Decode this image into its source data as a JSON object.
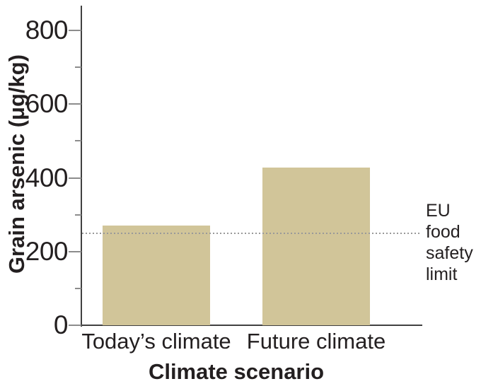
{
  "chart_data": {
    "type": "bar",
    "title": "",
    "xlabel": "Climate scenario",
    "ylabel": "Grain arsenic (μg/kg)",
    "categories": [
      "Today’s climate",
      "Future climate"
    ],
    "values": [
      270,
      428
    ],
    "ylim": [
      0,
      870
    ],
    "yticks_major": [
      0,
      200,
      400,
      600,
      800
    ],
    "yticks_minor": [
      100,
      300,
      500,
      700
    ],
    "reference_line": {
      "value": 250,
      "style": "dotted",
      "label": "EU\nfood\nsafety\nlimit"
    },
    "legend": "none",
    "grid": false,
    "colors": {
      "bar_fill": "#d1c599",
      "axis_line": "#404040",
      "tick_mark": "#8c8c8c",
      "reference_line": "#999999",
      "text": "#231f20"
    }
  }
}
